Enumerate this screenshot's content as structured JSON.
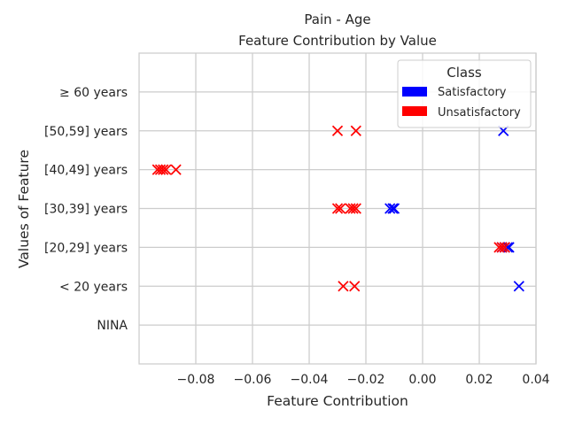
{
  "chart_data": {
    "type": "scatter",
    "title": "Pain - Age",
    "subtitle": "Feature Contribution by Value",
    "xlabel": "Feature Contribution",
    "ylabel": "Values of Feature",
    "xlim": [
      -0.1,
      0.04
    ],
    "x_ticks": [
      "−0.08",
      "−0.06",
      "−0.04",
      "−0.02",
      "0.00",
      "0.02",
      "0.04"
    ],
    "x_tick_values": [
      -0.08,
      -0.06,
      -0.04,
      -0.02,
      0.0,
      0.02,
      0.04
    ],
    "categories": [
      "NINA",
      "< 20 years",
      "[20,29] years",
      "[30,39] years",
      "[40,49] years",
      "[50,59] years",
      "≥ 60 years"
    ],
    "grid": true,
    "marker": "x",
    "legend": {
      "title": "Class",
      "placement": "top-right",
      "entries": [
        {
          "label": "Satisfactory",
          "color": "#0000ff"
        },
        {
          "label": "Unsatisfactory",
          "color": "#ff0000"
        }
      ]
    },
    "series": [
      {
        "name": "Satisfactory",
        "color": "#0000ff",
        "points": [
          {
            "x": 0.0285,
            "y": "[50,59] years"
          },
          {
            "x": -0.0115,
            "y": "[30,39] years"
          },
          {
            "x": -0.0105,
            "y": "[30,39] years"
          },
          {
            "x": -0.01,
            "y": "[30,39] years"
          },
          {
            "x": 0.028,
            "y": "[20,29] years"
          },
          {
            "x": 0.029,
            "y": "[20,29] years"
          },
          {
            "x": 0.03,
            "y": "[20,29] years"
          },
          {
            "x": 0.0305,
            "y": "[20,29] years"
          },
          {
            "x": 0.034,
            "y": "< 20 years"
          }
        ]
      },
      {
        "name": "Unsatisfactory",
        "color": "#ff0000",
        "points": [
          {
            "x": -0.03,
            "y": "[50,59] years"
          },
          {
            "x": -0.0235,
            "y": "[50,59] years"
          },
          {
            "x": -0.0935,
            "y": "[40,49] years"
          },
          {
            "x": -0.0925,
            "y": "[40,49] years"
          },
          {
            "x": -0.0915,
            "y": "[40,49] years"
          },
          {
            "x": -0.0905,
            "y": "[40,49] years"
          },
          {
            "x": -0.087,
            "y": "[40,49] years"
          },
          {
            "x": -0.03,
            "y": "[30,39] years"
          },
          {
            "x": -0.029,
            "y": "[30,39] years"
          },
          {
            "x": -0.0255,
            "y": "[30,39] years"
          },
          {
            "x": -0.0245,
            "y": "[30,39] years"
          },
          {
            "x": -0.0235,
            "y": "[30,39] years"
          },
          {
            "x": 0.027,
            "y": "[20,29] years"
          },
          {
            "x": 0.028,
            "y": "[20,29] years"
          },
          {
            "x": 0.029,
            "y": "[20,29] years"
          },
          {
            "x": -0.028,
            "y": "< 20 years"
          },
          {
            "x": -0.024,
            "y": "< 20 years"
          }
        ]
      }
    ]
  }
}
